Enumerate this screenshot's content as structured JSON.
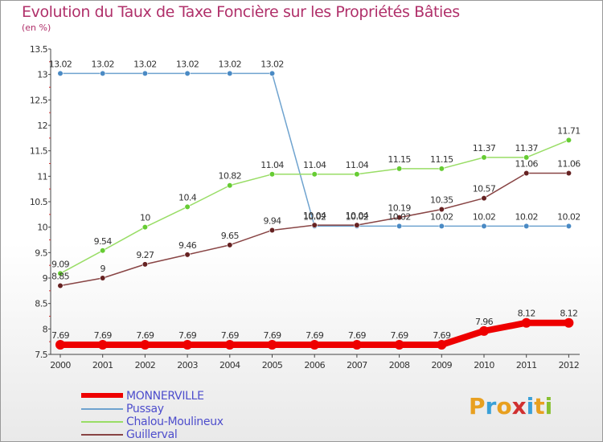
{
  "chart_data": {
    "type": "line",
    "title": "Evolution du Taux de Taxe Foncière sur les Propriétés Bâties",
    "subtitle": "(en %)",
    "categories": [
      "2000",
      "2001",
      "2002",
      "2003",
      "2004",
      "2005",
      "2006",
      "2007",
      "2008",
      "2009",
      "2010",
      "2011",
      "2012"
    ],
    "ylim": [
      7.5,
      13.5
    ],
    "yticks": [
      "7.5",
      "8",
      "8.5",
      "9",
      "9.5",
      "10",
      "10.5",
      "11",
      "11.5",
      "12",
      "12.5",
      "13",
      "13.5"
    ],
    "grid": false,
    "legend_position": "bottom-left",
    "series": [
      {
        "name": "MONNERVILLE",
        "color": "#ee0000",
        "marker_color": "#ee0000",
        "values": [
          7.69,
          7.69,
          7.69,
          7.69,
          7.69,
          7.69,
          7.69,
          7.69,
          7.69,
          7.69,
          7.96,
          8.12,
          8.12
        ],
        "labels": [
          "7.69",
          "7.69",
          "7.69",
          "7.69",
          "7.69",
          "7.69",
          "7.69",
          "7.69",
          "7.69",
          "7.69",
          "7.96",
          "8.12",
          "8.12"
        ]
      },
      {
        "name": "Pussay",
        "color": "#6fa3cf",
        "marker_color": "#4a8ac4",
        "values": [
          13.02,
          13.02,
          13.02,
          13.02,
          13.02,
          13.02,
          10.02,
          10.02,
          10.02,
          10.02,
          10.02,
          10.02,
          10.02
        ],
        "labels": [
          "13.02",
          "13.02",
          "13.02",
          "13.02",
          "13.02",
          "13.02",
          "10.02",
          "10.02",
          "10.02",
          "10.02",
          "10.02",
          "10.02",
          "10.02"
        ]
      },
      {
        "name": "Chalou-Moulineux",
        "color": "#99dd66",
        "marker_color": "#66cc33",
        "values": [
          9.09,
          9.54,
          10,
          10.4,
          10.82,
          11.04,
          11.04,
          11.04,
          11.15,
          11.15,
          11.37,
          11.37,
          11.71
        ],
        "labels": [
          "9.09",
          "9.54",
          "10",
          "10.4",
          "10.82",
          "11.04",
          "11.04",
          "11.04",
          "11.15",
          "11.15",
          "11.37",
          "11.37",
          "11.71"
        ]
      },
      {
        "name": "Guillerval",
        "color": "#884444",
        "marker_color": "#662222",
        "values": [
          8.85,
          9,
          9.27,
          9.46,
          9.65,
          9.94,
          10.04,
          10.04,
          10.19,
          10.35,
          10.57,
          11.06,
          11.06
        ],
        "labels": [
          "8.85",
          "9",
          "9.27",
          "9.46",
          "9.65",
          "9.94",
          "10.04",
          "10.04",
          "10.19",
          "10.35",
          "10.57",
          "11.06",
          "11.06"
        ]
      }
    ]
  },
  "logo": {
    "letters": [
      {
        "char": "P",
        "color": "#e8a020"
      },
      {
        "char": "r",
        "color": "#3aa0d8"
      },
      {
        "char": "o",
        "color": "#e8a020"
      },
      {
        "char": "x",
        "color": "#d03030"
      },
      {
        "char": "i",
        "color": "#3aa0d8"
      },
      {
        "char": "t",
        "color": "#e8a020"
      },
      {
        "char": "i",
        "color": "#88c030"
      }
    ]
  }
}
